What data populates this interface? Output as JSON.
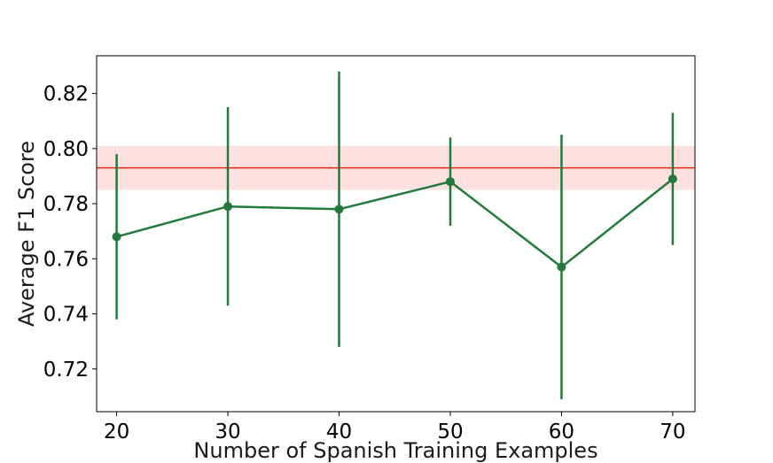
{
  "chart_data": {
    "type": "line",
    "xlabel": "Number of Spanish Training Examples",
    "ylabel": "Average F1 Score",
    "xlim": [
      18.2,
      72.0
    ],
    "ylim": [
      0.7045,
      0.8337
    ],
    "xticks": [
      20,
      30,
      40,
      50,
      60,
      70
    ],
    "yticks": [
      0.72,
      0.74,
      0.76,
      0.78,
      0.8,
      0.82
    ],
    "ytick_labels": [
      "0.72",
      "0.74",
      "0.76",
      "0.78",
      "0.80",
      "0.82"
    ],
    "series": [
      {
        "x": [
          20,
          30,
          40,
          50,
          60,
          70
        ],
        "values": [
          0.768,
          0.779,
          0.778,
          0.788,
          0.757,
          0.789
        ],
        "err_low": [
          0.738,
          0.743,
          0.728,
          0.772,
          0.709,
          0.765
        ],
        "err_high": [
          0.798,
          0.815,
          0.828,
          0.804,
          0.805,
          0.813
        ],
        "color": "#217a3a"
      }
    ],
    "reference_line": {
      "value": 0.793,
      "band": [
        0.785,
        0.801
      ],
      "color": "#e8261a",
      "band_color": "#fde0e0"
    },
    "grid": false
  }
}
